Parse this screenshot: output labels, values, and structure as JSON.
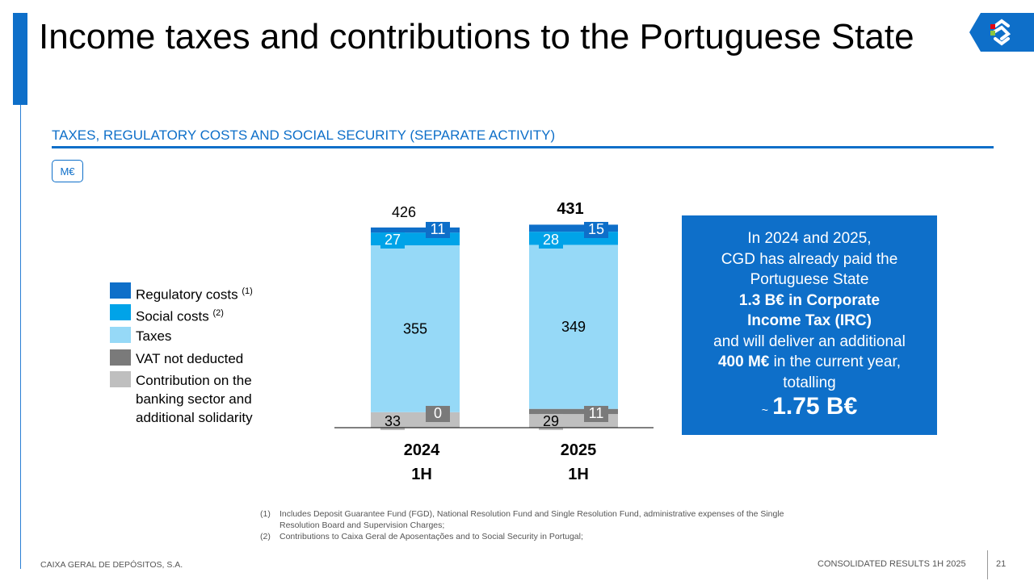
{
  "header": {
    "title": "Income taxes and contributions to the Portuguese State",
    "subtitle": "TAXES, REGULATORY COSTS AND SOCIAL SECURITY (SEPARATE ACTIVITY)",
    "unit": "M€"
  },
  "legend": [
    {
      "label": "Regulatory costs",
      "note": "(1)",
      "color": "#0e6fc9"
    },
    {
      "label": "Social costs",
      "note": "(2)",
      "color": "#00a3e8"
    },
    {
      "label": "Taxes",
      "note": "",
      "color": "#96d9f7"
    },
    {
      "label": "VAT not deducted",
      "note": "",
      "color": "#7a7a7a"
    },
    {
      "label": "Contribution on the banking sector and additional solidarity",
      "note": "",
      "color": "#bfbfbf"
    }
  ],
  "chart_data": {
    "type": "stacked-bar",
    "categories": [
      "2024\n1H",
      "2025\n1H"
    ],
    "category_lines": [
      [
        "2024",
        "1H"
      ],
      [
        "2025",
        "1H"
      ]
    ],
    "series": [
      {
        "name": "Contribution on the banking sector and additional solidarity",
        "values": [
          33,
          29
        ],
        "color": "#bfbfbf"
      },
      {
        "name": "VAT not deducted",
        "values": [
          0,
          11
        ],
        "color": "#7a7a7a"
      },
      {
        "name": "Taxes",
        "values": [
          355,
          349
        ],
        "color": "#96d9f7"
      },
      {
        "name": "Social costs",
        "values": [
          27,
          28
        ],
        "color": "#00a3e8"
      },
      {
        "name": "Regulatory costs",
        "values": [
          11,
          15
        ],
        "color": "#0e6fc9"
      }
    ],
    "totals": [
      426,
      431
    ],
    "ylim": [
      0,
      431
    ],
    "grid": false
  },
  "callout": {
    "line1": "In 2024 and 2025,",
    "line2": "CGD has already paid the",
    "line3": "Portuguese State",
    "line4_bold": "1.3 B€ in Corporate",
    "line5_bold": "Income Tax (IRC)",
    "line6": "and will deliver an additional",
    "line7_bold": "400 M€",
    "line7_rest": " in the current year,",
    "line8": "totalling",
    "tilde": "~",
    "big_value": "1.75 B€"
  },
  "footnotes": [
    {
      "num": "(1)",
      "text": "Includes Deposit Guarantee Fund (FGD), National Resolution Fund and Single Resolution Fund, administrative expenses of the Single Resolution Board and Supervision Charges;"
    },
    {
      "num": "(2)",
      "text": "Contributions to Caixa Geral de Aposentações and to Social Security in Portugal;"
    }
  ],
  "footer": {
    "company": "CAIXA GERAL DE DEPÓSITOS, S.A.",
    "report": "CONSOLIDATED RESULTS 1H 2025",
    "page": "21"
  }
}
